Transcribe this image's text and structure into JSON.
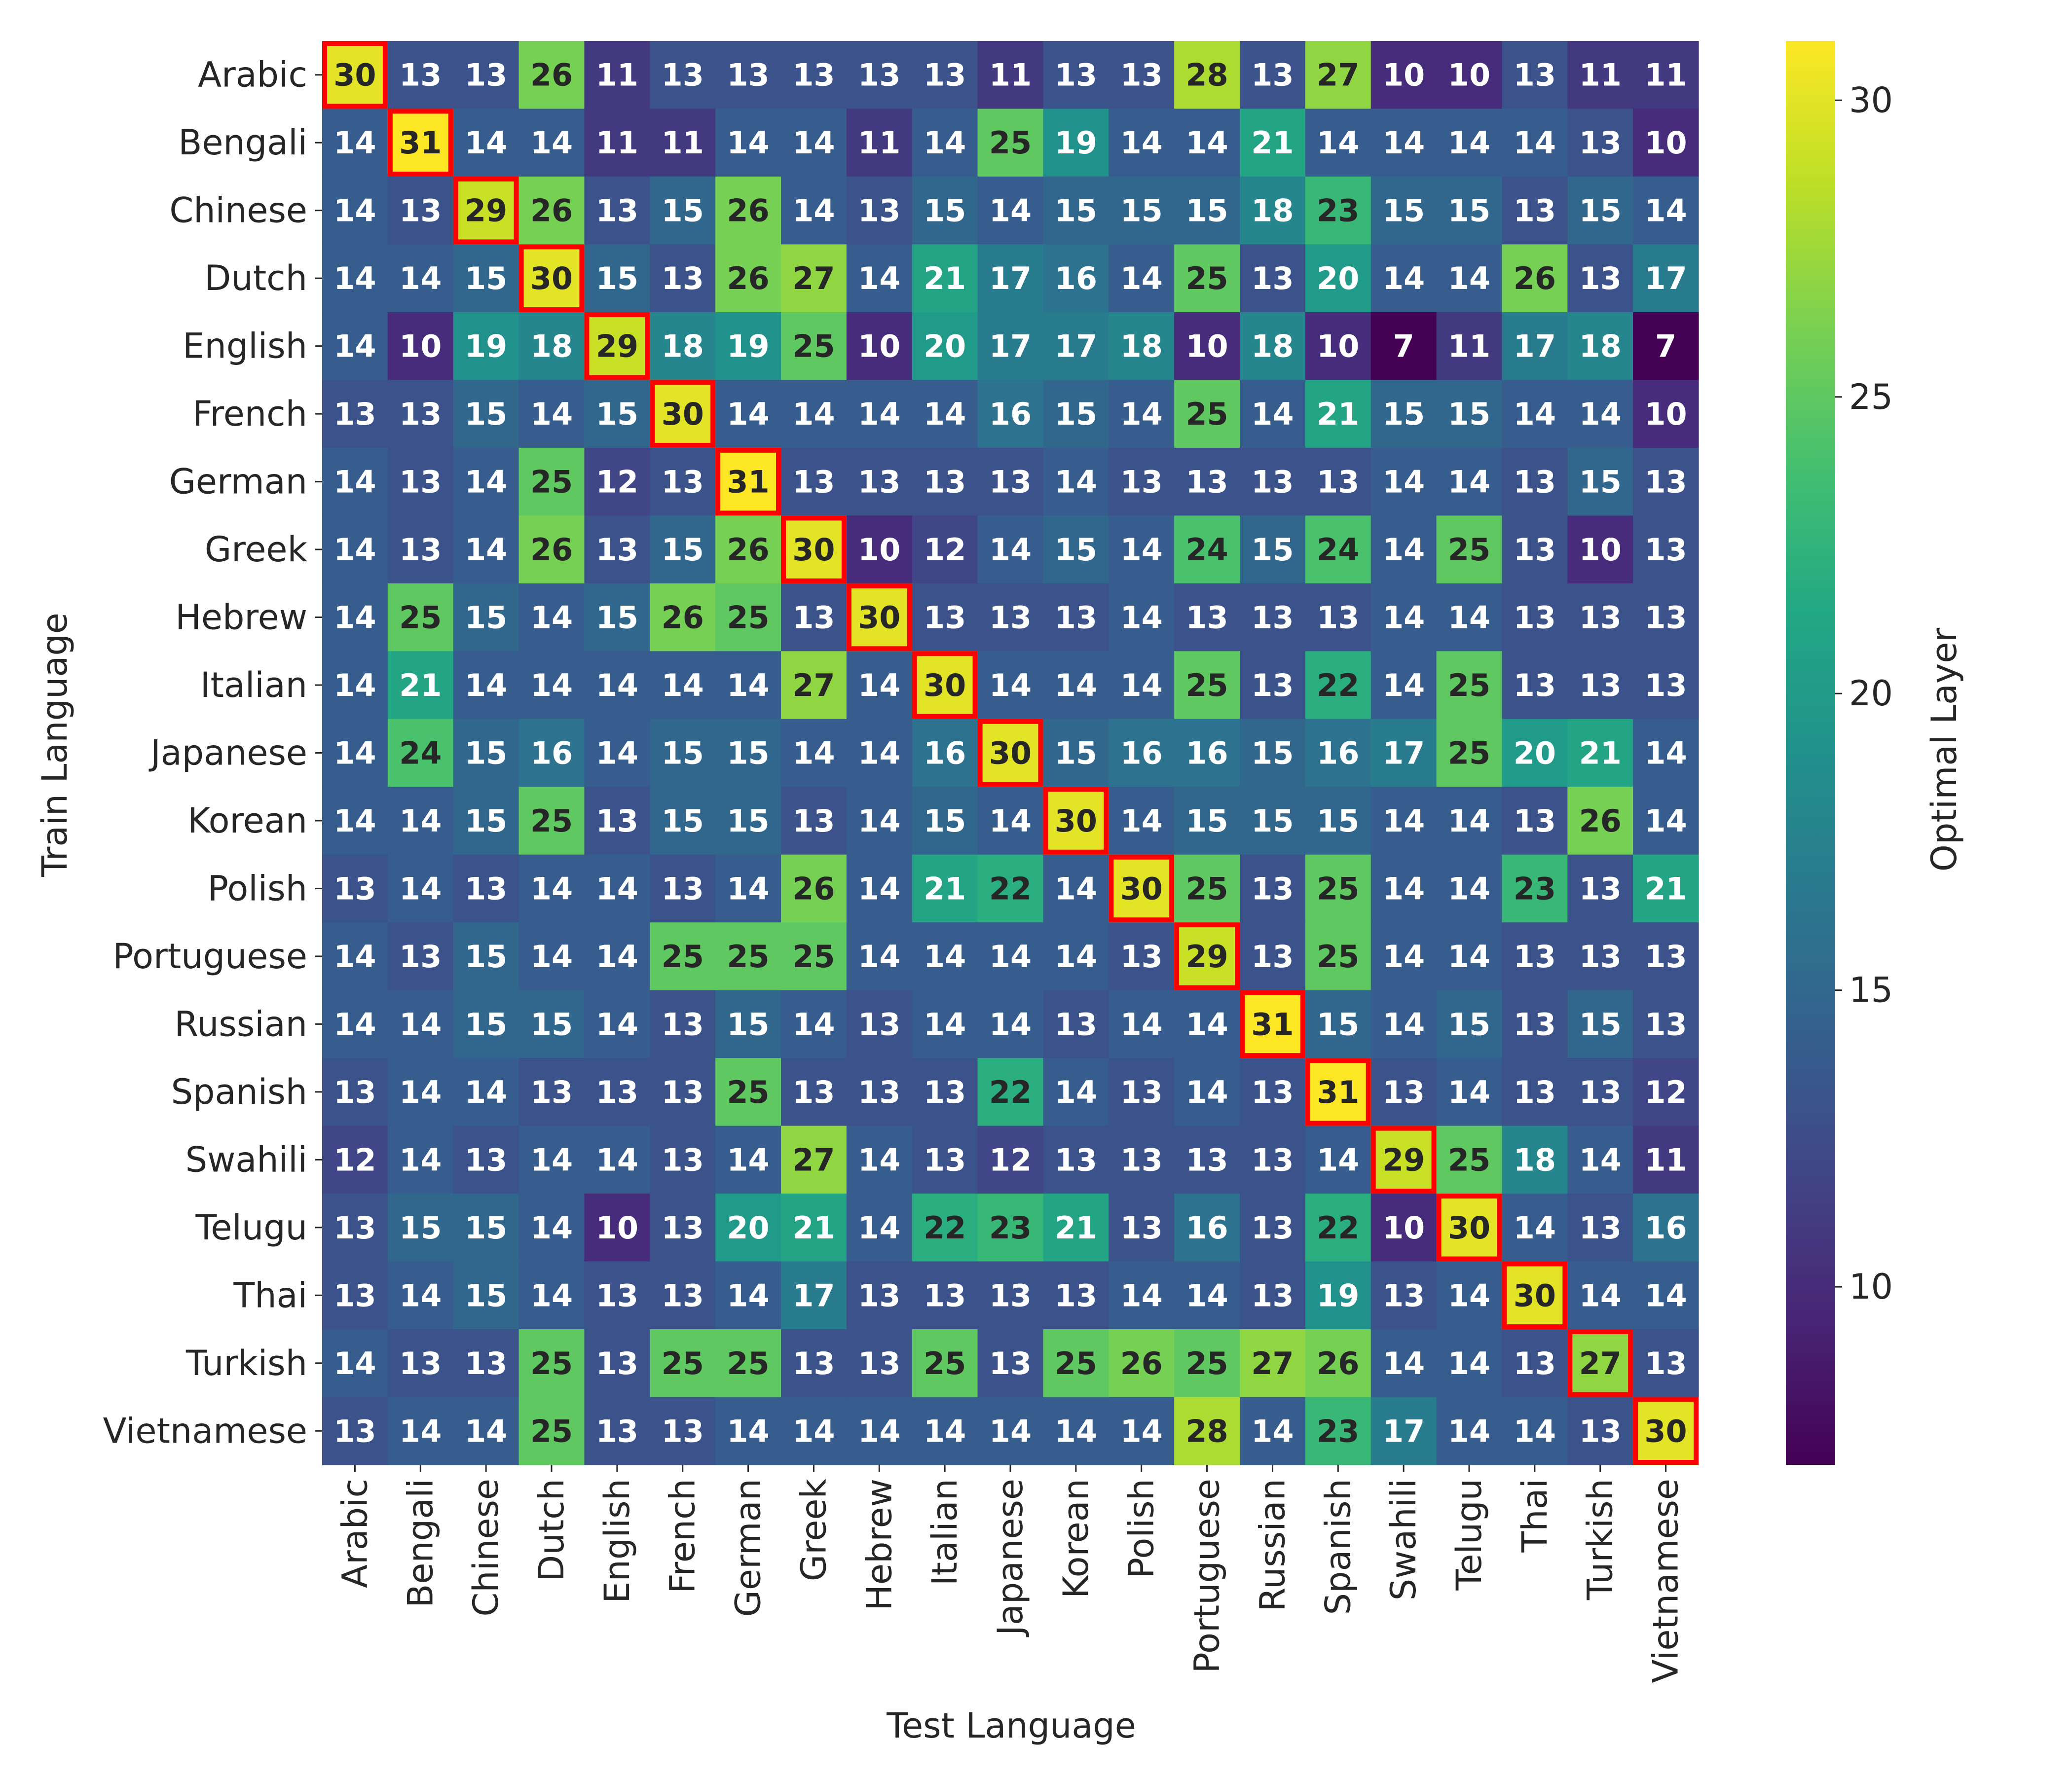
{
  "chart_data": {
    "type": "heatmap",
    "title": "",
    "xlabel": "Test Language",
    "ylabel": "Train Language",
    "colorbar_label": "Optimal Layer",
    "colorbar_ticks": [
      10,
      15,
      20,
      25,
      30
    ],
    "value_range": [
      7,
      31
    ],
    "colormap": "viridis",
    "highlight_color": "#ff0000",
    "highlight_rule": "diagonal",
    "columns": [
      "Arabic",
      "Bengali",
      "Chinese",
      "Dutch",
      "English",
      "French",
      "German",
      "Greek",
      "Hebrew",
      "Italian",
      "Japanese",
      "Korean",
      "Polish",
      "Portuguese",
      "Russian",
      "Spanish",
      "Swahili",
      "Telugu",
      "Thai",
      "Turkish",
      "Vietnamese"
    ],
    "rows": [
      "Arabic",
      "Bengali",
      "Chinese",
      "Dutch",
      "English",
      "French",
      "German",
      "Greek",
      "Hebrew",
      "Italian",
      "Japanese",
      "Korean",
      "Polish",
      "Portuguese",
      "Russian",
      "Spanish",
      "Swahili",
      "Telugu",
      "Thai",
      "Turkish",
      "Vietnamese"
    ],
    "values": [
      [
        30,
        13,
        13,
        26,
        11,
        13,
        13,
        13,
        13,
        13,
        11,
        13,
        13,
        28,
        13,
        27,
        10,
        10,
        13,
        11,
        11
      ],
      [
        14,
        31,
        14,
        14,
        11,
        11,
        14,
        14,
        11,
        14,
        25,
        19,
        14,
        14,
        21,
        14,
        14,
        14,
        14,
        13,
        10
      ],
      [
        14,
        13,
        29,
        26,
        13,
        15,
        26,
        14,
        13,
        15,
        14,
        15,
        15,
        15,
        18,
        23,
        15,
        15,
        13,
        15,
        14
      ],
      [
        14,
        14,
        15,
        30,
        15,
        13,
        26,
        27,
        14,
        21,
        17,
        16,
        14,
        25,
        13,
        20,
        14,
        14,
        26,
        13,
        17
      ],
      [
        14,
        10,
        19,
        18,
        29,
        18,
        19,
        25,
        10,
        20,
        17,
        17,
        18,
        10,
        18,
        10,
        7,
        11,
        17,
        18,
        7
      ],
      [
        13,
        13,
        15,
        14,
        15,
        30,
        14,
        14,
        14,
        14,
        16,
        15,
        14,
        25,
        14,
        21,
        15,
        15,
        14,
        14,
        10
      ],
      [
        14,
        13,
        14,
        25,
        12,
        13,
        31,
        13,
        13,
        13,
        13,
        14,
        13,
        13,
        13,
        13,
        14,
        14,
        13,
        15,
        13
      ],
      [
        14,
        13,
        14,
        26,
        13,
        15,
        26,
        30,
        10,
        12,
        14,
        15,
        14,
        24,
        15,
        24,
        14,
        25,
        13,
        10,
        13
      ],
      [
        14,
        25,
        15,
        14,
        15,
        26,
        25,
        13,
        30,
        13,
        13,
        13,
        14,
        13,
        13,
        13,
        14,
        14,
        13,
        13,
        13
      ],
      [
        14,
        21,
        14,
        14,
        14,
        14,
        14,
        27,
        14,
        30,
        14,
        14,
        14,
        25,
        13,
        22,
        14,
        25,
        13,
        13,
        13
      ],
      [
        14,
        24,
        15,
        16,
        14,
        15,
        15,
        14,
        14,
        16,
        30,
        15,
        16,
        16,
        15,
        16,
        17,
        25,
        20,
        21,
        14
      ],
      [
        14,
        14,
        15,
        25,
        13,
        15,
        15,
        13,
        14,
        15,
        14,
        30,
        14,
        15,
        15,
        15,
        14,
        14,
        13,
        26,
        14
      ],
      [
        13,
        14,
        13,
        14,
        14,
        13,
        14,
        26,
        14,
        21,
        22,
        14,
        30,
        25,
        13,
        25,
        14,
        14,
        23,
        13,
        21
      ],
      [
        14,
        13,
        15,
        14,
        14,
        25,
        25,
        25,
        14,
        14,
        14,
        14,
        13,
        29,
        13,
        25,
        14,
        14,
        13,
        13,
        13
      ],
      [
        14,
        14,
        15,
        15,
        14,
        13,
        15,
        14,
        13,
        14,
        14,
        13,
        14,
        14,
        31,
        15,
        14,
        15,
        13,
        15,
        13
      ],
      [
        13,
        14,
        14,
        13,
        13,
        13,
        25,
        13,
        13,
        13,
        22,
        14,
        13,
        14,
        13,
        31,
        13,
        14,
        13,
        13,
        12
      ],
      [
        12,
        14,
        13,
        14,
        14,
        13,
        14,
        27,
        14,
        13,
        12,
        13,
        13,
        13,
        13,
        14,
        29,
        25,
        18,
        14,
        11
      ],
      [
        13,
        15,
        15,
        14,
        10,
        13,
        20,
        21,
        14,
        22,
        23,
        21,
        13,
        16,
        13,
        22,
        10,
        30,
        14,
        13,
        16
      ],
      [
        13,
        14,
        15,
        14,
        13,
        13,
        14,
        17,
        13,
        13,
        13,
        13,
        14,
        14,
        13,
        19,
        13,
        14,
        30,
        14,
        14
      ],
      [
        14,
        13,
        13,
        25,
        13,
        25,
        25,
        13,
        13,
        25,
        13,
        25,
        26,
        25,
        27,
        26,
        14,
        14,
        13,
        27,
        13
      ],
      [
        13,
        14,
        14,
        25,
        13,
        13,
        14,
        14,
        14,
        14,
        14,
        14,
        14,
        28,
        14,
        23,
        17,
        14,
        14,
        13,
        30
      ]
    ]
  }
}
